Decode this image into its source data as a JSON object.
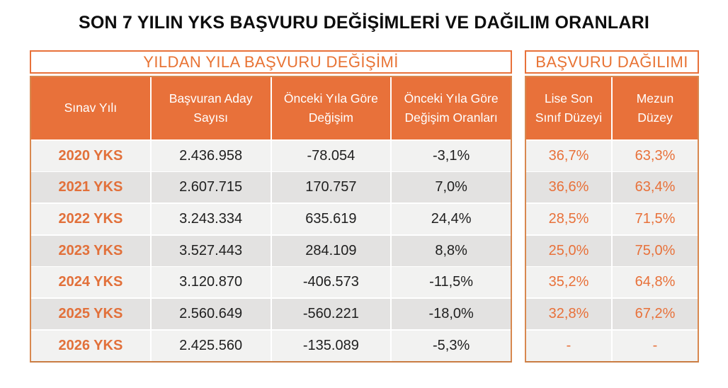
{
  "page_title": "SON 7 YILIN YKS BAŞVURU DEĞİŞİMLERİ VE DAĞILIM ORANLARI",
  "colors": {
    "accent_orange": "#E8713A",
    "header_fill": "#E8713A",
    "header_text": "#FFFFFF",
    "year_text": "#E2703A",
    "percent_text": "#E8713A",
    "band_light": "#F2F2F1",
    "band_dark": "#E3E2E1",
    "outer_border": "#D8884F",
    "number_text": "#1F1F1F",
    "title_text": "#0D0D0D"
  },
  "left_table": {
    "title": "YILDAN YILA BAŞVURU DEĞİŞİMİ",
    "columns": [
      "Sınav Yılı",
      "Başvuran Aday Sayısı",
      "Önceki Yıla Göre Değişim",
      "Önceki Yıla Göre Değişim Oranları"
    ],
    "rows": [
      {
        "year": "2020 YKS",
        "applicants": "2.436.958",
        "change": "-78.054",
        "rate": "-3,1%"
      },
      {
        "year": "2021 YKS",
        "applicants": "2.607.715",
        "change": "170.757",
        "rate": "7,0%"
      },
      {
        "year": "2022 YKS",
        "applicants": "3.243.334",
        "change": "635.619",
        "rate": "24,4%"
      },
      {
        "year": "2023 YKS",
        "applicants": "3.527.443",
        "change": "284.109",
        "rate": "8,8%"
      },
      {
        "year": "2024 YKS",
        "applicants": "3.120.870",
        "change": "-406.573",
        "rate": "-11,5%"
      },
      {
        "year": "2025 YKS",
        "applicants": "2.560.649",
        "change": "-560.221",
        "rate": "-18,0%"
      },
      {
        "year": "2026 YKS",
        "applicants": "2.425.560",
        "change": "-135.089",
        "rate": "-5,3%"
      }
    ]
  },
  "right_table": {
    "title": "BAŞVURU DAĞILIMI",
    "columns": [
      "Lise Son Sınıf Düzeyi",
      "Mezun Düzey"
    ],
    "rows": [
      {
        "lise_son": "36,7%",
        "mezun": "63,3%"
      },
      {
        "lise_son": "36,6%",
        "mezun": "63,4%"
      },
      {
        "lise_son": "28,5%",
        "mezun": "71,5%"
      },
      {
        "lise_son": "25,0%",
        "mezun": "75,0%"
      },
      {
        "lise_son": "35,2%",
        "mezun": "64,8%"
      },
      {
        "lise_son": "32,8%",
        "mezun": "67,2%"
      },
      {
        "lise_son": "-",
        "mezun": "-"
      }
    ]
  },
  "chart_data": {
    "type": "table",
    "title": "SON 7 YILIN YKS BAŞVURU DEĞİŞİMLERİ VE DAĞILIM ORANLARI",
    "sections": [
      {
        "name": "YILDAN YILA BAŞVURU DEĞİŞİMİ",
        "columns": [
          "Sınav Yılı",
          "Başvuran Aday Sayısı",
          "Önceki Yıla Göre Değişim",
          "Önceki Yıla Göre Değişim Oranları"
        ],
        "rows": [
          [
            "2020 YKS",
            "2.436.958",
            "-78.054",
            "-3,1%"
          ],
          [
            "2021 YKS",
            "2.607.715",
            "170.757",
            "7,0%"
          ],
          [
            "2022 YKS",
            "3.243.334",
            "635.619",
            "24,4%"
          ],
          [
            "2023 YKS",
            "3.527.443",
            "284.109",
            "8,8%"
          ],
          [
            "2024 YKS",
            "3.120.870",
            "-406.573",
            "-11,5%"
          ],
          [
            "2025 YKS",
            "2.560.649",
            "-560.221",
            "-18,0%"
          ],
          [
            "2026 YKS",
            "2.425.560",
            "-135.089",
            "-5,3%"
          ]
        ]
      },
      {
        "name": "BAŞVURU DAĞILIMI",
        "columns": [
          "Lise Son Sınıf Düzeyi",
          "Mezun Düzey"
        ],
        "rows": [
          [
            "36,7%",
            "63,3%"
          ],
          [
            "36,6%",
            "63,4%"
          ],
          [
            "28,5%",
            "71,5%"
          ],
          [
            "25,0%",
            "75,0%"
          ],
          [
            "35,2%",
            "64,8%"
          ],
          [
            "32,8%",
            "67,2%"
          ],
          [
            "-",
            "-"
          ]
        ]
      }
    ]
  }
}
